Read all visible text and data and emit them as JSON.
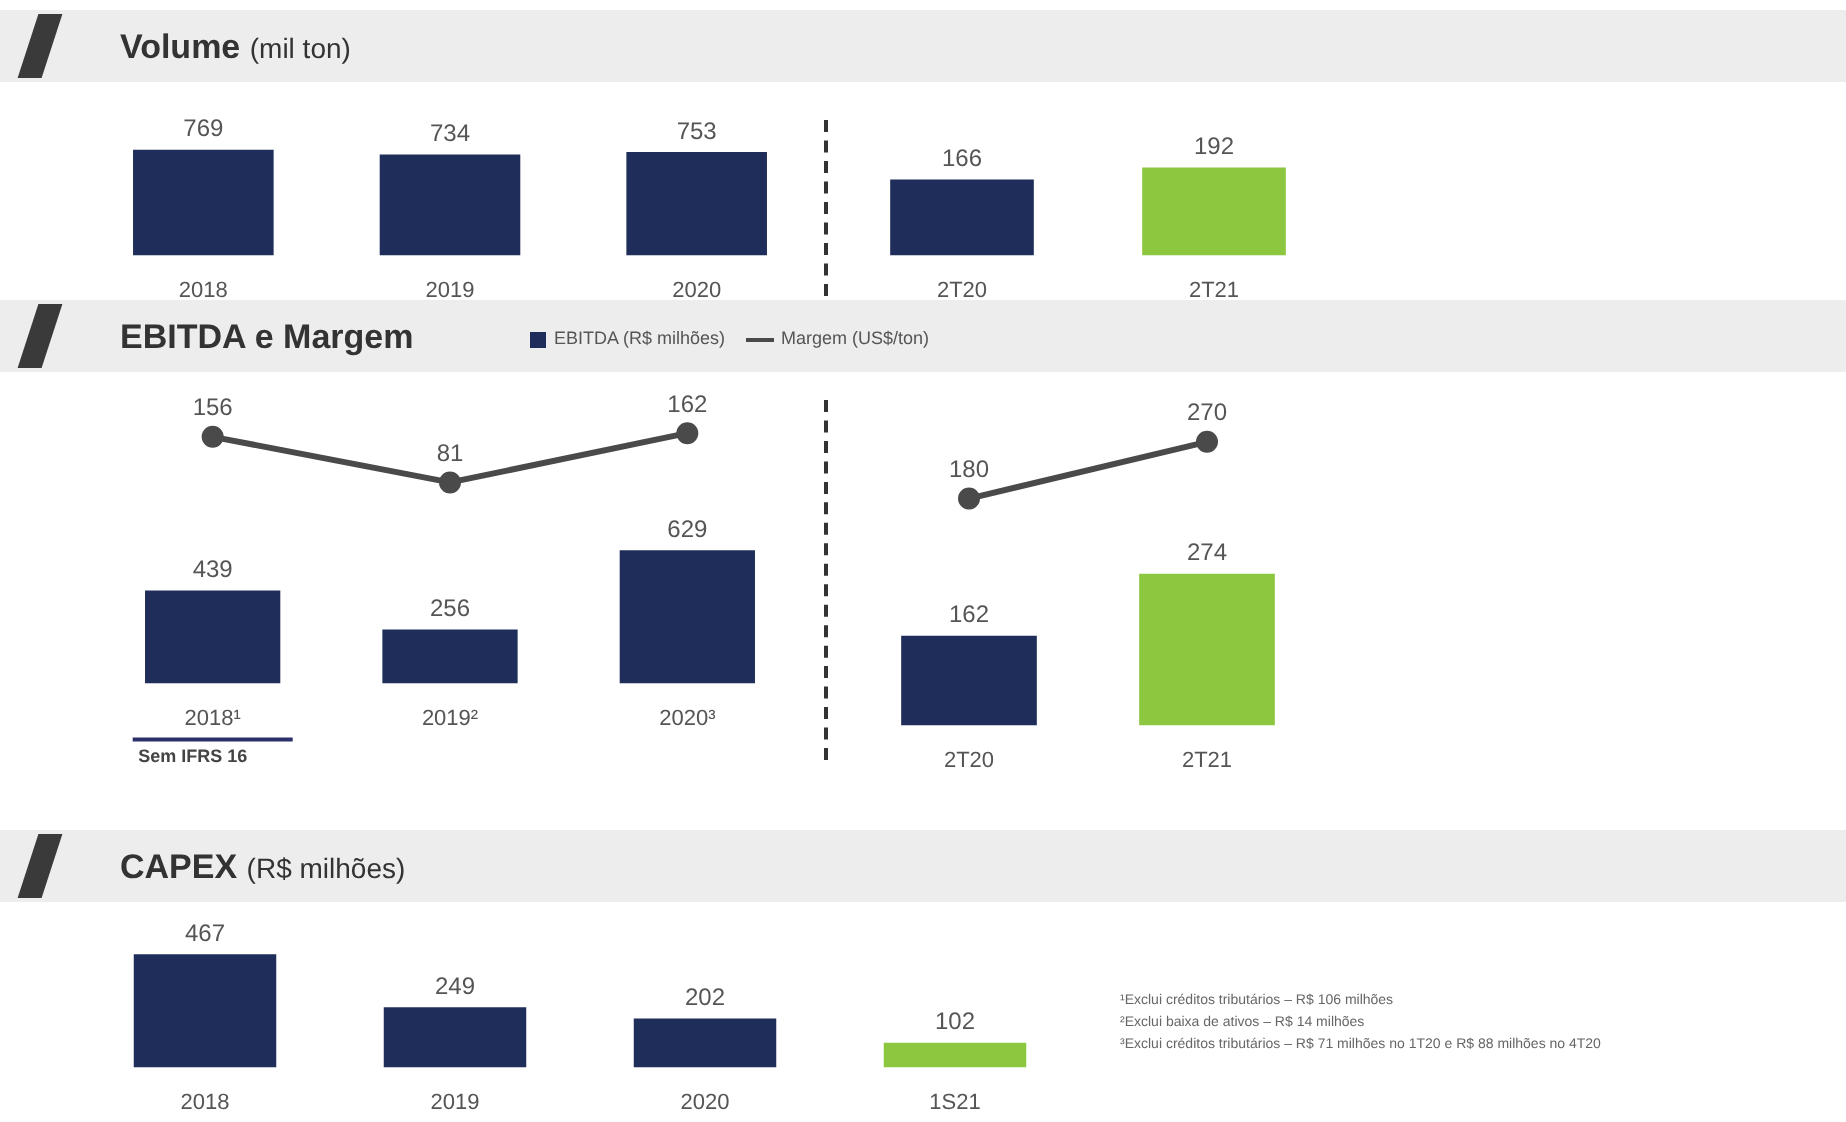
{
  "chart_data": [
    {
      "type": "bar",
      "title": "Volume (mil ton)",
      "categories": [
        "2018",
        "2019",
        "2020"
      ],
      "values": [
        769,
        734,
        753
      ],
      "color": "#1f2d5a",
      "data_labels": true,
      "tick_labels": "x"
    },
    {
      "type": "bar",
      "categories": [
        "2T20",
        "2T21"
      ],
      "values": [
        166,
        192
      ],
      "colors": [
        "#1f2d5a",
        "#8dc63f"
      ],
      "data_labels": true,
      "tick_labels": "x"
    },
    {
      "type": "bar",
      "title": "EBITDA e Margem",
      "categories": [
        "2018¹",
        "2019²",
        "2020³"
      ],
      "series": [
        {
          "type": "bar",
          "name": "EBITDA (R$ milhões)",
          "color": "#1f2d5a",
          "values": [
            439,
            256,
            629
          ]
        },
        {
          "type": "line",
          "axis": "y2",
          "name": "Margem (US$/ton)",
          "color": "#4a4a4a",
          "values": [
            156,
            81,
            162
          ]
        }
      ],
      "legend": "top",
      "marker": "circle",
      "data_labels": true,
      "tick_labels": "x",
      "ylim": [
        0,
        1320
      ],
      "y2lim": [
        -250,
        210
      ],
      "annotations": [
        "Sem IFRS 16"
      ]
    },
    {
      "type": "bar",
      "categories": [
        "2T20",
        "2T21"
      ],
      "series": [
        {
          "type": "bar",
          "colors": [
            "#1f2d5a",
            "#8dc63f"
          ],
          "values": [
            162,
            274
          ]
        },
        {
          "type": "line",
          "axis": "y2",
          "color": "#4a4a4a",
          "values": [
            180,
            270
          ]
        }
      ],
      "marker": "circle",
      "data_labels": true,
      "tick_labels": "x",
      "ylim": [
        0,
        580
      ],
      "y2lim": [
        -180,
        330
      ]
    },
    {
      "type": "bar",
      "title": "CAPEX (R$ milhões)",
      "categories": [
        "2018",
        "2019",
        "2020",
        "1S21"
      ],
      "values": [
        467,
        249,
        202,
        102
      ],
      "colors": [
        "#1f2d5a",
        "#1f2d5a",
        "#1f2d5a",
        "#8dc63f"
      ],
      "data_labels": true,
      "tick_labels": "x",
      "annotations": [
        "¹Exclui créditos tributários – R$ 106 milhões",
        "²Exclui baixa de ativos – R$ 14 milhões",
        "³Exclui créditos tributários – R$ 71 milhões no 1T20 e R$ 88 milhões no 4T20"
      ]
    }
  ]
}
